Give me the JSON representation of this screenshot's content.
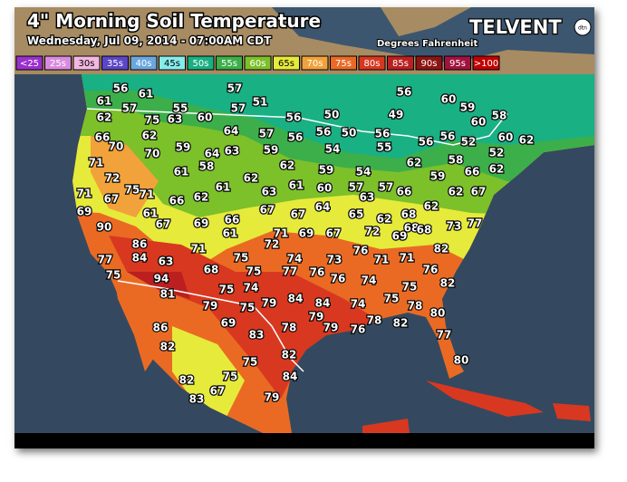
{
  "header": {
    "title": "4\" Morning Soil Temperature",
    "subtitle": "Wednesday, Jul 09, 2014 - 07:00AM CDT",
    "units": "Degrees Fahrenheit",
    "brand": "TELVENT",
    "brand_badge": "dtn"
  },
  "legend": [
    {
      "label": "<25",
      "color": "#9a2fcf"
    },
    {
      "label": "25s",
      "color": "#d98ae0"
    },
    {
      "label": "30s",
      "color": "#f3b8e2"
    },
    {
      "label": "35s",
      "color": "#5b46c8"
    },
    {
      "label": "40s",
      "color": "#6aa6e0"
    },
    {
      "label": "45s",
      "color": "#86ecec"
    },
    {
      "label": "50s",
      "color": "#19b083"
    },
    {
      "label": "55s",
      "color": "#3caf4a"
    },
    {
      "label": "60s",
      "color": "#7cc02a"
    },
    {
      "label": "65s",
      "color": "#e6ea3a"
    },
    {
      "label": "70s",
      "color": "#f2a23a"
    },
    {
      "label": "75s",
      "color": "#ea6a24"
    },
    {
      "label": "80s",
      "color": "#d83820"
    },
    {
      "label": "85s",
      "color": "#bb1f1f"
    },
    {
      "label": "90s",
      "color": "#8e1414"
    },
    {
      "label": "95s",
      "color": "#a2123e"
    },
    {
      "label": ">100",
      "color": "#c30000"
    }
  ],
  "map": {
    "readings": [
      56,
      61,
      57,
      51,
      56,
      60,
      59,
      61,
      62,
      57,
      75,
      55,
      63,
      60,
      57,
      56,
      50,
      49,
      60,
      58,
      66,
      70,
      62,
      64,
      57,
      56,
      56,
      50,
      56,
      56,
      56,
      52,
      60,
      62,
      71,
      70,
      59,
      64,
      63,
      59,
      54,
      55,
      62,
      58,
      52,
      58,
      61,
      62,
      59,
      54,
      59,
      66,
      62,
      72,
      75,
      71,
      61,
      62,
      61,
      60,
      57,
      57,
      66,
      62,
      67,
      71,
      67,
      66,
      62,
      63,
      63,
      69,
      61,
      67,
      67,
      64,
      65,
      62,
      68,
      62,
      67,
      69,
      66,
      61,
      68,
      68,
      73,
      77,
      90,
      71,
      69,
      67,
      72,
      69,
      72,
      86,
      71,
      76,
      82,
      77,
      84,
      63,
      75,
      74,
      73,
      71,
      71,
      75,
      68,
      75,
      77,
      76,
      76,
      74,
      76,
      94,
      75,
      74,
      82,
      81,
      79,
      84,
      84,
      74,
      75,
      75,
      75,
      79,
      78,
      80,
      79,
      69,
      86,
      78,
      79,
      76,
      78,
      82,
      83,
      82,
      77,
      82,
      75,
      80,
      75,
      84,
      82,
      67,
      83,
      79
    ]
  }
}
